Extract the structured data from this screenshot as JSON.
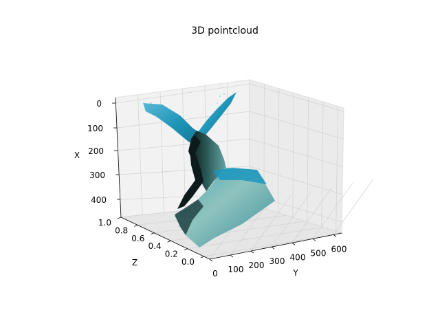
{
  "chart_data": {
    "type": "scatter",
    "projection": "3d",
    "title": "3D pointcloud",
    "xlabel": "Y",
    "ylabel": "Z",
    "zlabel": "X",
    "x_ticks": [
      "0",
      "100",
      "200",
      "300",
      "400",
      "500",
      "600"
    ],
    "y_ticks": [
      "0.0",
      "0.2",
      "0.4",
      "0.6",
      "0.8",
      "1.0"
    ],
    "z_ticks": [
      "0",
      "100",
      "200",
      "300",
      "400"
    ],
    "xlim": [
      0,
      640
    ],
    "ylim": [
      0,
      1.0
    ],
    "zlim_inverted": [
      480,
      0
    ],
    "grid": true,
    "description_colors": {
      "water_light": "#2aa3c9",
      "water_mid": "#1c88a8",
      "shadow": "#0c1a1c",
      "seafloor": "#7fb3b0",
      "pane_gray": "#f2f2f2",
      "pane_darker": "#e6e6e6",
      "grid_line": "#d0d0d0"
    }
  }
}
